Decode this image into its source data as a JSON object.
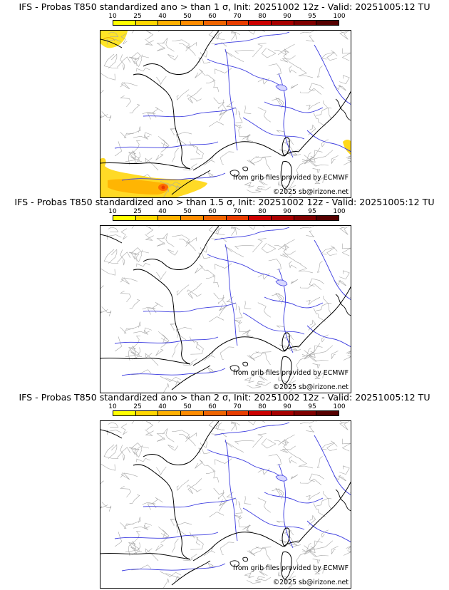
{
  "palette": [
    "#ffff00",
    "#ffd700",
    "#ffb000",
    "#ff8c00",
    "#f06400",
    "#e83c00",
    "#cc0000",
    "#a80000",
    "#800000",
    "#560000"
  ],
  "colorbar_ticks": [
    "10",
    "25",
    "40",
    "50",
    "60",
    "70",
    "80",
    "90",
    "95",
    "100"
  ],
  "credits": {
    "source": "from grib files provided by ECMWF",
    "copyright": "©2025 sb@irizone.net"
  },
  "panels": [
    {
      "title": "IFS - Probas T850  standardized ano > than 1 σ, Init: 20251002 12z - Valid: 20251005:12 TU",
      "has_probability_areas": true
    },
    {
      "title": "IFS - Probas T850  standardized ano > than 1.5 σ, Init: 20251002 12z - Valid: 20251005:12 TU",
      "has_probability_areas": false
    },
    {
      "title": "IFS - Probas T850  standardized ano > than 2 σ, Init: 20251002 12z - Valid: 20251005:12 TU",
      "has_probability_areas": false
    }
  ]
}
